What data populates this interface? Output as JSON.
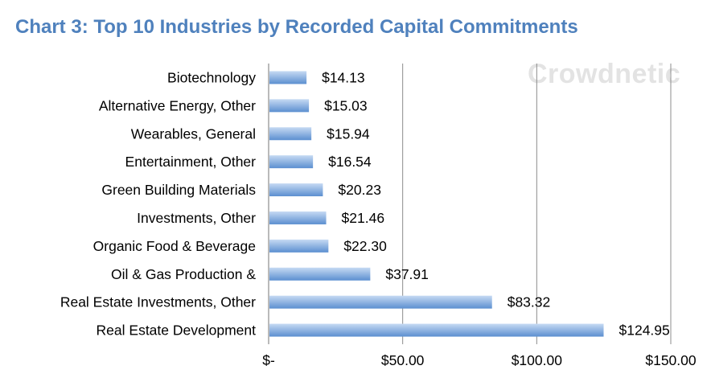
{
  "title": "Chart 3: Top 10 Industries by Recorded Capital Commitments",
  "watermark": "Crowdnetic",
  "colors": {
    "title": "#4f81bd",
    "bar_top": "#c6daf3",
    "bar_bottom": "#5b8fd0",
    "grid": "#8c8c8c"
  },
  "chart_data": {
    "type": "bar",
    "orientation": "horizontal",
    "title": "Chart 3: Top 10 Industries by Recorded Capital Commitments",
    "categories": [
      "Biotechnology",
      "Alternative Energy, Other",
      "Wearables, General",
      "Entertainment, Other",
      "Green Building Materials",
      "Investments, Other",
      "Organic Food & Beverage",
      "Oil & Gas Production &",
      "Real Estate Investments, Other",
      "Real Estate Development"
    ],
    "values": [
      14.13,
      15.03,
      15.94,
      16.54,
      20.23,
      21.46,
      22.3,
      37.91,
      83.32,
      124.95
    ],
    "value_labels": [
      "$14.13",
      "$15.03",
      "$15.94",
      "$16.54",
      "$20.23",
      "$21.46",
      "$22.30",
      "$37.91",
      "$83.32",
      "$124.95"
    ],
    "xlim": [
      0,
      150
    ],
    "xticks": [
      0,
      50,
      100,
      150
    ],
    "xtick_labels": [
      "$-",
      "$50.00",
      "$100.00",
      "$150.00"
    ],
    "grid": "vertical",
    "legend": "none"
  }
}
